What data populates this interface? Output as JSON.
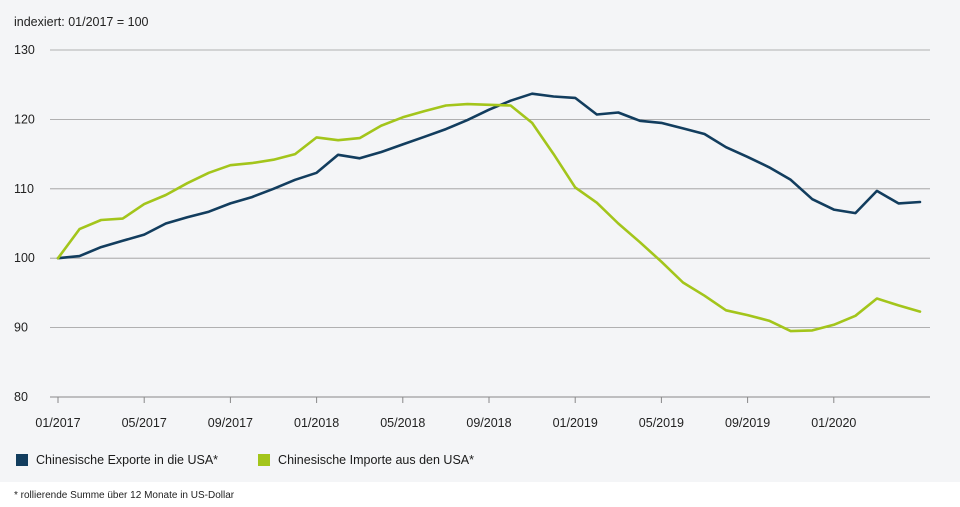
{
  "chart_data": {
    "type": "line",
    "ylabel": "indexiert: 01/2017 = 100",
    "ylim": [
      80,
      130
    ],
    "yticks": [
      "80",
      "90",
      "100",
      "110",
      "120",
      "130"
    ],
    "x_tick_labels": [
      "01/2017",
      "05/2017",
      "09/2017",
      "01/2018",
      "05/2018",
      "09/2018",
      "01/2019",
      "05/2019",
      "09/2019",
      "01/2020"
    ],
    "x_tick_months": [
      0,
      4,
      8,
      12,
      16,
      20,
      24,
      28,
      32,
      36
    ],
    "x_count": 41,
    "grid": true,
    "series": [
      {
        "name": "Chinesische Exporte in die USA*",
        "color": "#123d5e",
        "values": [
          100,
          100.3,
          101.6,
          102.5,
          103.4,
          105.0,
          105.9,
          106.7,
          107.9,
          108.8,
          110.0,
          111.3,
          112.3,
          114.9,
          114.4,
          115.3,
          116.4,
          117.5,
          118.6,
          119.9,
          121.4,
          122.7,
          123.7,
          123.3,
          123.1,
          120.7,
          121.0,
          119.8,
          119.5,
          118.7,
          117.9,
          116.0,
          114.6,
          113.1,
          111.3,
          108.5,
          107.0,
          106.5,
          109.7,
          107.9,
          108.1
        ]
      },
      {
        "name": "Chinesische Importe aus den USA*",
        "color": "#a3c51b",
        "values": [
          100,
          104.2,
          105.5,
          105.7,
          107.8,
          109.1,
          110.8,
          112.3,
          113.4,
          113.7,
          114.2,
          115.0,
          117.4,
          117.0,
          117.3,
          119.1,
          120.3,
          121.2,
          122.0,
          122.2,
          122.1,
          122.0,
          119.5,
          115.0,
          110.2,
          108.0,
          105.0,
          102.3,
          99.5,
          96.5,
          94.6,
          92.5,
          91.8,
          91.0,
          89.5,
          89.6,
          90.4,
          91.7,
          94.2,
          93.2,
          92.3
        ]
      }
    ]
  },
  "legend": [
    {
      "label": "Chinesische Exporte in die USA*",
      "color": "#123d5e"
    },
    {
      "label": "Chinesische Importe aus den USA*",
      "color": "#a3c51b"
    }
  ],
  "footnote": "* rollierende Summe über 12 Monate in US-Dollar"
}
